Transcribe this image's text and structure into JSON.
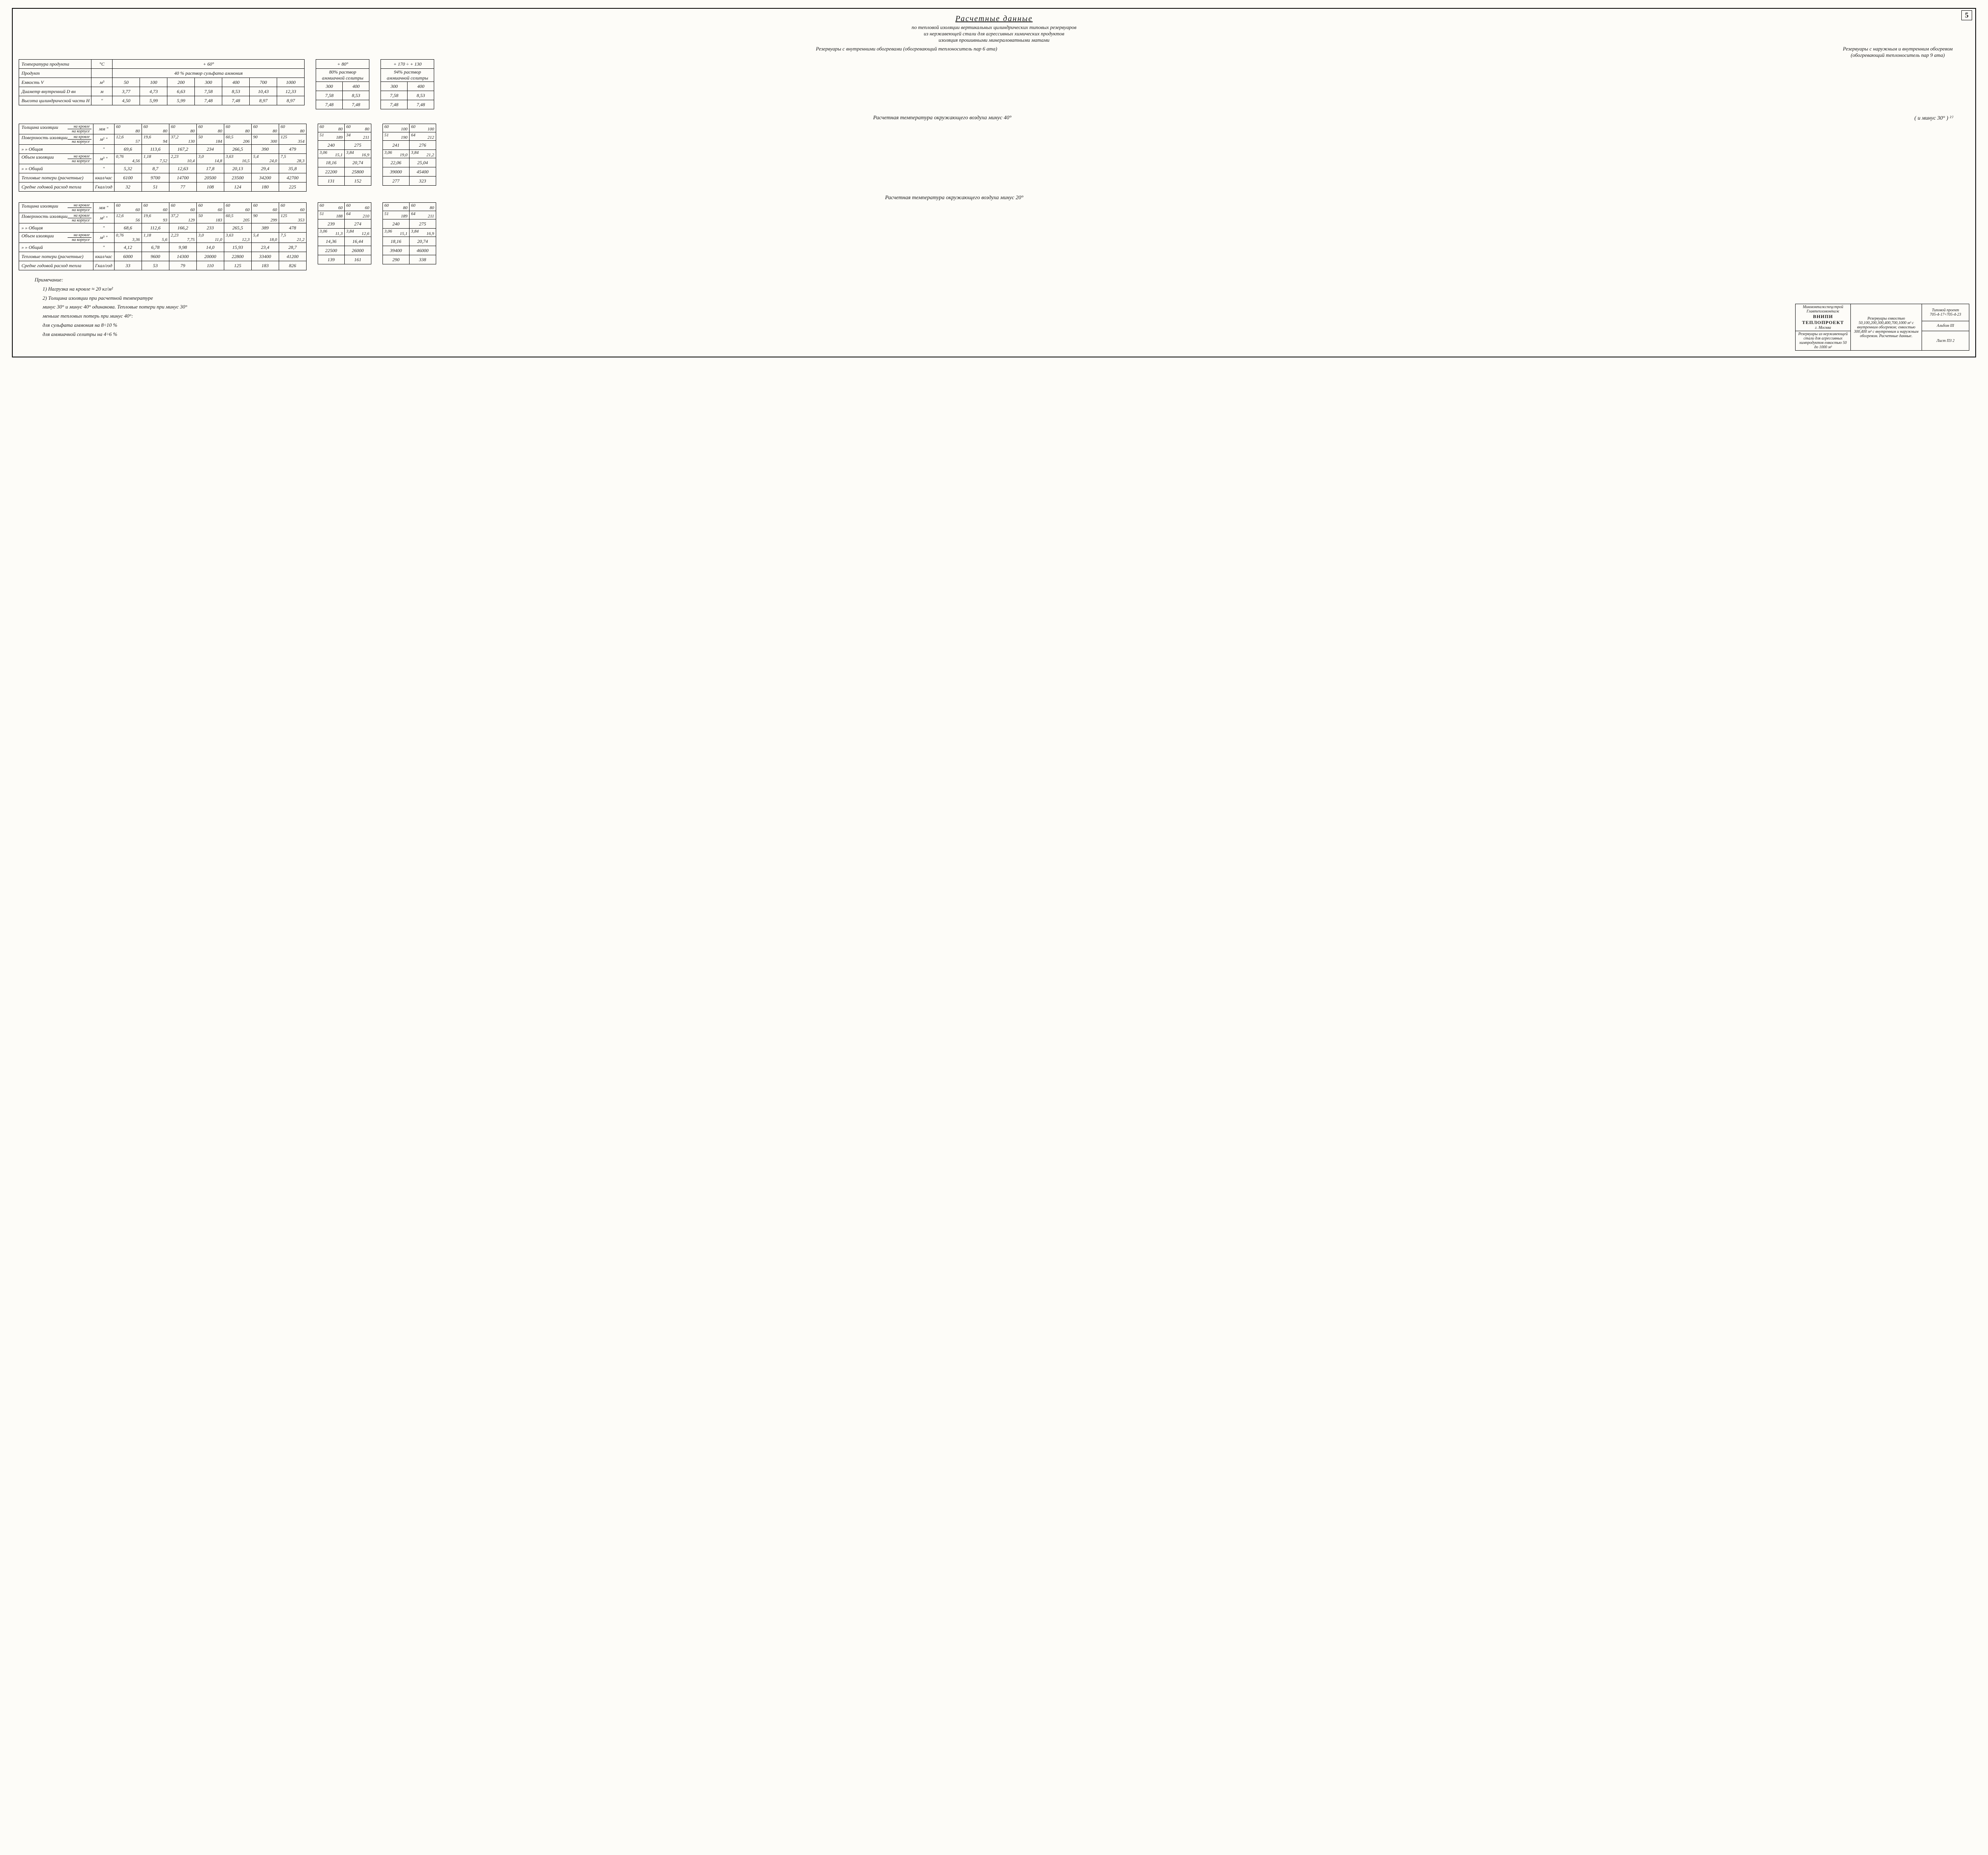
{
  "page_number": "5",
  "title": "Расчетные  данные",
  "subtitle1": "по тепловой изоляции вертикальных цилиндрических типовых резервуаров",
  "subtitle2": "из нержавеющей стали для агрессивных химических продуктов",
  "subtitle3": "изоляция прошивными минераловатными матами",
  "hdr_left": "Резервуары  с внутренними обогревами (обогревающий теплоноситель пар 6 ата)",
  "hdr_right": "Резервуары с наружным и внутренним обогревом (обогревающий теплоноситель пар 9 ата)",
  "t1": {
    "rows_labels": [
      "Температура продукта",
      "Продукт",
      "Емкость            V",
      "Диаметр внутренний D вн",
      "Высота цилиндрической части  H"
    ],
    "units": [
      "°C",
      "",
      "м³",
      "м",
      "\""
    ],
    "temp_span": "+ 60°",
    "prod_span": "40 %  раствор  сульфата  аммония",
    "cap": [
      "50",
      "100",
      "200",
      "300",
      "400",
      "700",
      "1000"
    ],
    "diam": [
      "3,77",
      "4,73",
      "6,63",
      "7,58",
      "8,53",
      "10,43",
      "12,33"
    ],
    "h": [
      "4,50",
      "5,99",
      "5,99",
      "7,48",
      "7,48",
      "8,97",
      "8,97"
    ]
  },
  "t1a": {
    "temp": "+ 80°",
    "prod": "80% раствор аммиачной селитры",
    "cap": [
      "300",
      "400"
    ],
    "diam": [
      "7,58",
      "8,53"
    ],
    "h": [
      "7,48",
      "7,48"
    ]
  },
  "t1b": {
    "temp": "+ 170 ÷ + 130",
    "prod": "94% раствор аммиачной селитры",
    "cap": [
      "300",
      "400"
    ],
    "diam": [
      "7,58",
      "8,53"
    ],
    "h": [
      "7,48",
      "7,48"
    ]
  },
  "sec40": "Расчетная температура  окружающего  воздуха  минус 40°",
  "sec40_note": "( и минус 30° ) ²⁾",
  "t2_labels": [
    {
      "main": "Толщина изоляции",
      "a": "на кровле",
      "b": "на корпусе"
    },
    {
      "main": "Поверхность изоляции",
      "a": "на кровле",
      "b": "на корпусе"
    },
    {
      "main": "   »        »     Общая"
    },
    {
      "main": "Объем изоляции",
      "a": "на кровле",
      "b": "на корпусе"
    },
    {
      "main": "   »        »     Общий"
    },
    {
      "main": "Тепловые потери (расчетные)"
    },
    {
      "main": "Средне годовой расход тепла"
    }
  ],
  "t2_units": [
    "мм  \"",
    "м²  \"",
    "\"",
    "м³  \"",
    "\"",
    "ккал/час",
    "Гкал/год"
  ],
  "t2": [
    [
      [
        "60",
        "80"
      ],
      [
        "60",
        "80"
      ],
      [
        "60",
        "80"
      ],
      [
        "60",
        "80"
      ],
      [
        "60",
        "80"
      ],
      [
        "60",
        "80"
      ],
      [
        "60",
        "80"
      ]
    ],
    [
      [
        "12,6",
        "57"
      ],
      [
        "19,6",
        "94"
      ],
      [
        "37,2",
        "130"
      ],
      [
        "50",
        "184"
      ],
      [
        "60,5",
        "206"
      ],
      [
        "90",
        "300"
      ],
      [
        "125",
        "354"
      ]
    ],
    [
      "69,6",
      "113,6",
      "167,2",
      "234",
      "266,5",
      "390",
      "479"
    ],
    [
      [
        "0,76",
        "4,56"
      ],
      [
        "1,18",
        "7,52"
      ],
      [
        "2,23",
        "10,4"
      ],
      [
        "3,0",
        "14,8"
      ],
      [
        "3,63",
        "16,5"
      ],
      [
        "5,4",
        "24,0"
      ],
      [
        "7,5",
        "28,3"
      ]
    ],
    [
      "5,32",
      "8,7",
      "12,63",
      "17,8",
      "20,13",
      "29,4",
      "35,8"
    ],
    [
      "6100",
      "9700",
      "14700",
      "20500",
      "23500",
      "34200",
      "42700"
    ],
    [
      "32",
      "51",
      "77",
      "108",
      "124",
      "180",
      "225"
    ]
  ],
  "t2a": [
    [
      [
        "60",
        "80"
      ],
      [
        "60",
        "80"
      ]
    ],
    [
      [
        "51",
        "189"
      ],
      [
        "34",
        "211"
      ]
    ],
    [
      "240",
      "275"
    ],
    [
      [
        "3,06",
        "15,1"
      ],
      [
        "3,84",
        "16,9"
      ]
    ],
    [
      "18,16",
      "20,74"
    ],
    [
      "22200",
      "25800"
    ],
    [
      "131",
      "152"
    ]
  ],
  "t2b": [
    [
      [
        "60",
        "100"
      ],
      [
        "60",
        "100"
      ]
    ],
    [
      [
        "51",
        "190"
      ],
      [
        "64",
        "212"
      ]
    ],
    [
      "241",
      "276"
    ],
    [
      [
        "3,06",
        "19,0"
      ],
      [
        "3,84",
        "21,2"
      ]
    ],
    [
      "22,06",
      "25,04"
    ],
    [
      "39000",
      "45400"
    ],
    [
      "277",
      "323"
    ]
  ],
  "sec20": "Расчетная температура окружающего воздуха  минус 20°",
  "t3": [
    [
      [
        "60",
        "60"
      ],
      [
        "60",
        "60"
      ],
      [
        "60",
        "60"
      ],
      [
        "60",
        "60"
      ],
      [
        "60",
        "60"
      ],
      [
        "60",
        "60"
      ],
      [
        "60",
        "60"
      ]
    ],
    [
      [
        "12,6",
        "56"
      ],
      [
        "19,6",
        "93"
      ],
      [
        "37,2",
        "129"
      ],
      [
        "50",
        "183"
      ],
      [
        "60,5",
        "205"
      ],
      [
        "90",
        "299"
      ],
      [
        "125",
        "353"
      ]
    ],
    [
      "68,6",
      "112,6",
      "166,2",
      "233",
      "265,5",
      "389",
      "478"
    ],
    [
      [
        "0,76",
        "3,36"
      ],
      [
        "1,18",
        "5,6"
      ],
      [
        "2,23",
        "7,75"
      ],
      [
        "3,0",
        "11,0"
      ],
      [
        "3,63",
        "12,3"
      ],
      [
        "5,4",
        "18,0"
      ],
      [
        "7,5",
        "21,2"
      ]
    ],
    [
      "4,12",
      "6,78",
      "9,98",
      "14,0",
      "15,93",
      "23,4",
      "28,7"
    ],
    [
      "6000",
      "9600",
      "14300",
      "20000",
      "22800",
      "33400",
      "41200"
    ],
    [
      "33",
      "53",
      "79",
      "110",
      "125",
      "183",
      "826"
    ]
  ],
  "t3a": [
    [
      [
        "60",
        "60"
      ],
      [
        "60",
        "60"
      ]
    ],
    [
      [
        "51",
        "188"
      ],
      [
        "64",
        "210"
      ]
    ],
    [
      "239",
      "274"
    ],
    [
      [
        "3,06",
        "11,3"
      ],
      [
        "3,84",
        "12,6"
      ]
    ],
    [
      "14,36",
      "16,44"
    ],
    [
      "22500",
      "26000"
    ],
    [
      "139",
      "161"
    ]
  ],
  "t3b": [
    [
      [
        "60",
        "80"
      ],
      [
        "60",
        "80"
      ]
    ],
    [
      [
        "51",
        "189"
      ],
      [
        "64",
        "211"
      ]
    ],
    [
      "240",
      "275"
    ],
    [
      [
        "3,06",
        "15,1"
      ],
      [
        "3,84",
        "16,9"
      ]
    ],
    [
      "18,16",
      "20,74"
    ],
    [
      "39400",
      "46000"
    ],
    [
      "290",
      "338"
    ]
  ],
  "notes_title": "Примечание:",
  "notes": [
    "1) Нагрузка  на  кровле  ≈ 20 кг/м²",
    "2) Толщина  изоляции  при  расчетной температуре",
    "минус 30° и  минус 40°  одинакова.  Тепловые  потери  при минус 30°",
    "меньше  тепловых потерь  при  минус 40°:",
    "для  сульфата  аммония   на 8÷10 %",
    "для  аммиачной  селитры  на 4÷6 %"
  ],
  "stamp": {
    "org1": "Минмонтажспецстрой",
    "org2": "Главтепломонтаж",
    "org3": "ВНИПИ ТЕПЛОПРОЕКТ",
    "org4": "г. Москва",
    "desc1": "Резервуары из нержавеющей стали для агрессивных химпродуктов емкостью 50 до 1000 м³",
    "desc2": "Резервуары емкостью 50,100,200,300,400,700,1000 м³ с внутренним обогревом; емкостью 300,400 м³ с внутренним и наружным обогревом. Расчетные данные.",
    "proj_l": "Типовой проект",
    "proj": "705-4-17÷705-4-23",
    "album_l": "Альбом",
    "album": "III",
    "sheet_l": "Лист",
    "sheet": "ПЗ 2"
  }
}
